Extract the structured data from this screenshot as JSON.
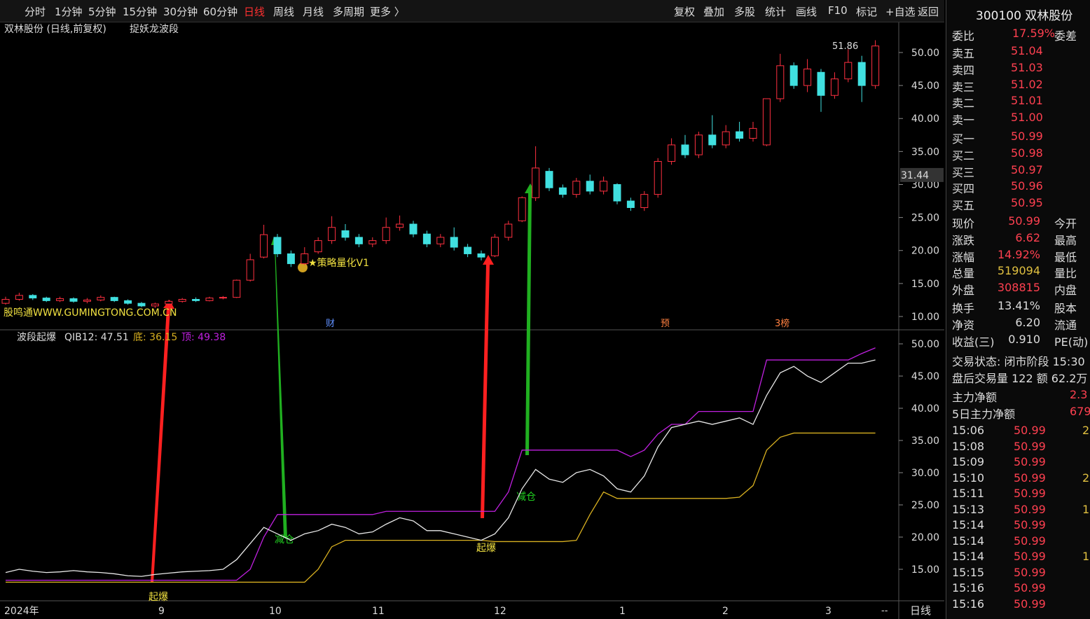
{
  "toolbar": {
    "periods": [
      "分时",
      "1分钟",
      "5分钟",
      "15分钟",
      "30分钟",
      "60分钟",
      "日线",
      "周线",
      "月线",
      "多周期",
      "更多 〉"
    ],
    "tools": [
      "复权",
      "叠加",
      "多股",
      "统计",
      "画线",
      "F10",
      "标记",
      "+自选",
      "返回"
    ]
  },
  "chart": {
    "title": "双林股份 (日线,前复权)",
    "indicator_name": "捉妖龙波段",
    "ylim": [
      8.09,
      54.56
    ],
    "yticks": [
      {
        "value": 10,
        "label": "10.00"
      },
      {
        "value": 15,
        "label": "15.00"
      },
      {
        "value": 20,
        "label": "20.00"
      },
      {
        "value": 25,
        "label": "25.00"
      },
      {
        "value": 30,
        "label": "30.00"
      },
      {
        "value": 35,
        "label": "35.00"
      },
      {
        "value": 40,
        "label": "40.00"
      },
      {
        "value": 45,
        "label": "45.00"
      },
      {
        "value": 50,
        "label": "50.00"
      }
    ],
    "high_label": 51.86,
    "crosshair_label": 31.44,
    "annotations": [
      "★策略量化V1",
      "股鸣通WWW.GUMINGTONG.COM.CN"
    ],
    "events": [
      "财",
      "预",
      "3榜"
    ],
    "candles": [
      [
        12.0,
        12.6,
        13.0,
        11.8
      ],
      [
        12.6,
        13.2,
        13.6,
        12.4
      ],
      [
        13.2,
        12.8,
        13.4,
        12.5
      ],
      [
        12.8,
        12.4,
        13.0,
        12.2
      ],
      [
        12.4,
        12.7,
        13.0,
        12.2
      ],
      [
        12.7,
        12.3,
        12.9,
        12.1
      ],
      [
        12.3,
        12.5,
        12.8,
        12.0
      ],
      [
        12.5,
        12.9,
        13.2,
        12.3
      ],
      [
        12.9,
        12.4,
        13.0,
        12.2
      ],
      [
        12.4,
        12.0,
        12.6,
        11.8
      ],
      [
        12.0,
        11.6,
        12.2,
        11.4
      ],
      [
        11.6,
        11.9,
        12.1,
        11.3
      ],
      [
        11.9,
        12.3,
        12.5,
        11.7
      ],
      [
        12.3,
        12.6,
        12.8,
        12.1
      ],
      [
        12.6,
        12.4,
        12.9,
        12.2
      ],
      [
        12.4,
        12.8,
        13.0,
        12.3
      ],
      [
        12.8,
        12.9,
        13.1,
        12.6
      ],
      [
        12.9,
        15.5,
        15.6,
        12.8
      ],
      [
        15.5,
        18.6,
        19.5,
        15.3
      ],
      [
        19.0,
        22.4,
        23.9,
        18.8
      ],
      [
        22.0,
        19.5,
        22.5,
        19.0
      ],
      [
        19.5,
        18.0,
        20.0,
        17.5
      ],
      [
        18.0,
        19.5,
        20.5,
        17.8
      ],
      [
        19.8,
        21.5,
        22.0,
        19.5
      ],
      [
        21.5,
        23.5,
        25.2,
        21.0
      ],
      [
        23.0,
        22.0,
        24.0,
        21.5
      ],
      [
        22.0,
        21.0,
        22.5,
        20.5
      ],
      [
        21.0,
        21.5,
        22.0,
        20.5
      ],
      [
        21.5,
        23.5,
        25.0,
        21.0
      ],
      [
        23.5,
        24.0,
        25.3,
        23.0
      ],
      [
        24.0,
        22.5,
        24.5,
        22.0
      ],
      [
        22.5,
        21.0,
        23.0,
        20.5
      ],
      [
        21.0,
        22.0,
        22.5,
        20.5
      ],
      [
        22.0,
        20.5,
        23.5,
        20.0
      ],
      [
        20.5,
        19.5,
        21.0,
        19.0
      ],
      [
        19.5,
        19.0,
        20.0,
        18.5
      ],
      [
        19.2,
        22.0,
        22.5,
        19.0
      ],
      [
        22.0,
        24.0,
        24.5,
        21.5
      ],
      [
        24.5,
        28.0,
        28.2,
        24.3
      ],
      [
        28.0,
        32.5,
        35.8,
        27.5
      ],
      [
        32.0,
        29.5,
        32.5,
        29.0
      ],
      [
        29.5,
        28.5,
        30.0,
        28.0
      ],
      [
        28.5,
        30.5,
        31.0,
        28.0
      ],
      [
        30.5,
        29.0,
        31.5,
        28.5
      ],
      [
        29.0,
        30.5,
        31.2,
        28.5
      ],
      [
        30.0,
        27.5,
        30.2,
        27.0
      ],
      [
        27.5,
        26.5,
        28.0,
        26.0
      ],
      [
        26.5,
        28.5,
        29.0,
        26.0
      ],
      [
        28.5,
        33.5,
        34.0,
        28.0
      ],
      [
        33.5,
        36.0,
        37.0,
        33.0
      ],
      [
        36.0,
        34.5,
        37.5,
        34.0
      ],
      [
        34.5,
        37.5,
        38.0,
        34.0
      ],
      [
        37.5,
        36.0,
        40.5,
        35.5
      ],
      [
        36.0,
        38.0,
        39.0,
        35.5
      ],
      [
        38.0,
        37.0,
        39.5,
        36.5
      ],
      [
        37.0,
        38.5,
        39.5,
        36.5
      ],
      [
        36.0,
        43.0,
        43.0,
        35.8
      ],
      [
        43.0,
        48.0,
        49.8,
        42.5
      ],
      [
        48.0,
        45.0,
        48.5,
        44.5
      ],
      [
        45.0,
        47.5,
        49.0,
        44.0
      ],
      [
        47.0,
        43.5,
        47.5,
        41.0
      ],
      [
        43.5,
        46.0,
        47.0,
        43.0
      ],
      [
        46.0,
        48.5,
        50.5,
        45.5
      ],
      [
        48.5,
        45.0,
        49.5,
        42.5
      ],
      [
        45.0,
        50.99,
        51.86,
        44.5
      ]
    ]
  },
  "indicator": {
    "title": "波段起爆",
    "qib_label": "QIB12: 47.51",
    "bottom_label": "底: 36.15",
    "top_label": "顶: 49.38",
    "ylim": [
      10.11,
      52.07
    ],
    "yticks": [
      {
        "value": 15,
        "label": "15.00"
      },
      {
        "value": 20,
        "label": "20.00"
      },
      {
        "value": 25,
        "label": "25.00"
      },
      {
        "value": 30,
        "label": "30.00"
      },
      {
        "value": 35,
        "label": "35.00"
      },
      {
        "value": 40,
        "label": "40.00"
      },
      {
        "value": 45,
        "label": "45.00"
      },
      {
        "value": 50,
        "label": "50.00"
      }
    ],
    "series": [
      {
        "color": "#c020e0",
        "values": [
          13.3,
          13.3,
          13.3,
          13.3,
          13.3,
          13.3,
          13.3,
          13.3,
          13.3,
          13.3,
          13.3,
          13.3,
          13.3,
          13.3,
          13.3,
          13.3,
          13.3,
          13.3,
          15,
          20,
          23.5,
          23.5,
          23.5,
          23.5,
          23.5,
          23.5,
          23.5,
          23.5,
          24,
          24,
          24,
          24,
          24,
          24,
          24,
          24,
          24,
          27,
          33.5,
          33.5,
          33.5,
          33.5,
          33.5,
          33.5,
          33.5,
          33.5,
          32.5,
          33.5,
          36,
          37.5,
          37.5,
          39.5,
          39.5,
          39.5,
          39.5,
          39.5,
          47.5,
          47.5,
          47.5,
          47.5,
          47.5,
          47.5,
          47.5,
          48.5,
          49.38
        ]
      },
      {
        "color": "#d8b020",
        "values": [
          13,
          13,
          13,
          13,
          13,
          13,
          13,
          13,
          13,
          13,
          13,
          13,
          13,
          13,
          13,
          13,
          13,
          13,
          13,
          13,
          13,
          13,
          13,
          15,
          18.5,
          19.5,
          19.5,
          19.5,
          19.5,
          19.5,
          19.5,
          19.5,
          19.5,
          19.5,
          19.5,
          19.5,
          19.3,
          19.3,
          19.3,
          19.3,
          19.3,
          19.3,
          19.5,
          23.5,
          27,
          26,
          26,
          26,
          26,
          26,
          26,
          26,
          26,
          26,
          26.2,
          28,
          33.5,
          35.5,
          36.15,
          36.15,
          36.15,
          36.15,
          36.15,
          36.15,
          36.15
        ]
      },
      {
        "color": "#e8e8e8",
        "values": [
          14.5,
          15,
          14.7,
          14.5,
          14.6,
          14.8,
          14.6,
          14.5,
          14.3,
          14,
          13.9,
          14.2,
          14.4,
          14.6,
          14.7,
          14.8,
          15,
          16.5,
          19,
          21.5,
          20.5,
          19.5,
          20.5,
          21,
          22,
          21.5,
          20.5,
          20.8,
          22,
          23,
          22.5,
          21,
          21,
          20.5,
          20,
          19.5,
          20.5,
          23,
          27.5,
          30.5,
          29,
          28.5,
          30,
          30.5,
          29.5,
          27.5,
          27,
          29.5,
          34,
          37,
          37.5,
          38,
          37.5,
          38,
          38.5,
          37.5,
          42,
          45.5,
          46.5,
          45,
          44,
          45.5,
          47,
          47,
          47.51
        ]
      }
    ],
    "signals": [
      "起爆",
      "减仓",
      "起爆",
      "减仓"
    ]
  },
  "xaxis": {
    "labels": [
      "2024年",
      "9",
      "10",
      "11",
      "12",
      "1",
      "2",
      "3"
    ],
    "more": "--",
    "period": "日线"
  },
  "quote": {
    "title": "300100 双林股份",
    "weibi": [
      "委比",
      "17.59%",
      "委差"
    ],
    "asks": [
      [
        "卖五",
        "51.04"
      ],
      [
        "卖四",
        "51.03"
      ],
      [
        "卖三",
        "51.02"
      ],
      [
        "卖二",
        "51.01"
      ],
      [
        "卖一",
        "51.00"
      ]
    ],
    "bids": [
      [
        "买一",
        "50.99"
      ],
      [
        "买二",
        "50.98"
      ],
      [
        "买三",
        "50.97"
      ],
      [
        "买四",
        "50.96"
      ],
      [
        "买五",
        "50.95"
      ]
    ],
    "stats": [
      [
        "现价",
        "50.99",
        "今开"
      ],
      [
        "涨跌",
        "6.62",
        "最高"
      ],
      [
        "涨幅",
        "14.92%",
        "最低"
      ],
      [
        "总量",
        "519094",
        "量比"
      ],
      [
        "外盘",
        "308815",
        "内盘"
      ],
      [
        "换手",
        "13.41%",
        "股本"
      ],
      [
        "净资",
        "6.20",
        "流通"
      ],
      [
        "收益(三)",
        "0.910",
        "PE(动)"
      ]
    ],
    "status": [
      "交易状态: 闭市阶段 15:30",
      "盘后交易量 122 额 62.2万"
    ],
    "flow": [
      [
        "主力净额",
        "2.3"
      ],
      [
        "5日主力净额",
        "679"
      ]
    ],
    "ticks": [
      [
        "15:06",
        "50.99",
        "2"
      ],
      [
        "15:08",
        "50.99"
      ],
      [
        "15:09",
        "50.99"
      ],
      [
        "15:10",
        "50.99",
        "2"
      ],
      [
        "15:11",
        "50.99"
      ],
      [
        "15:13",
        "50.99",
        "1"
      ],
      [
        "15:14",
        "50.99"
      ],
      [
        "15:14",
        "50.99"
      ],
      [
        "15:14",
        "50.99",
        "1"
      ],
      [
        "15:15",
        "50.99"
      ],
      [
        "15:16",
        "50.99"
      ],
      [
        "15:16",
        "50.99"
      ]
    ]
  }
}
